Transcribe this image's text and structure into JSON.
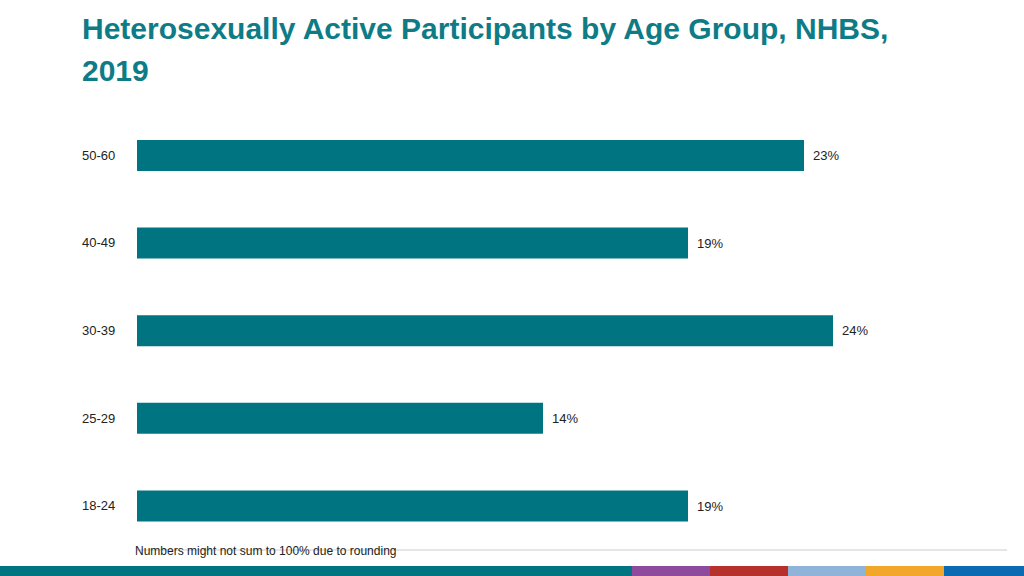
{
  "chart_data": {
    "type": "bar",
    "title": "Heterosexually Active Participants by Age Group, NHBS, 2019",
    "orientation": "horizontal",
    "categories": [
      "50-60",
      "40-49",
      "30-39",
      "25-29",
      "18-24"
    ],
    "values": [
      23,
      19,
      24,
      14,
      19
    ],
    "value_labels": [
      "23%",
      "19%",
      "24%",
      "14%",
      "19%"
    ],
    "color": "#007481",
    "xlim": [
      0,
      30
    ],
    "data_labels": true,
    "tick_labels": "y",
    "grid": false,
    "annotations": [
      "Numbers might not sum to 100% due to rounding"
    ]
  }
}
